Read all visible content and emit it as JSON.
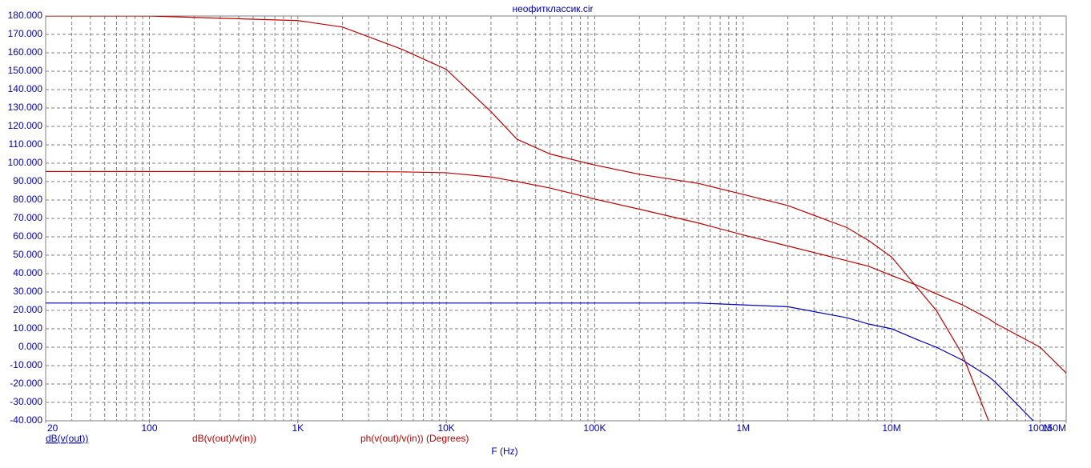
{
  "chart_data": {
    "type": "line",
    "title": "неофитклассик.cir",
    "x_label": "F (Hz)",
    "log_x": true,
    "grid": true,
    "minor_grid": true,
    "x": [
      20,
      100,
      1000,
      2000,
      5000,
      10000,
      20000,
      30000,
      50000,
      100000,
      200000,
      500000,
      1000000,
      2000000,
      5000000,
      7000000,
      10000000,
      15000000,
      20000000,
      30000000,
      45000000,
      50000000,
      90000000,
      100000000,
      150000000
    ],
    "series": [
      {
        "name": "dB(v(out))",
        "color": "#0000c0",
        "values": [
          24,
          24,
          24,
          24,
          24,
          24,
          24,
          24,
          24,
          24,
          24,
          24,
          23,
          22,
          16,
          12.6,
          10,
          4,
          0,
          -7,
          -16,
          -19,
          -40,
          null,
          null
        ]
      },
      {
        "name": "dB(v(out)/v(in))",
        "color": "#c00000",
        "values": [
          95.5,
          95.5,
          95.5,
          95.5,
          95.3,
          94.8,
          92.5,
          90,
          86.5,
          80.5,
          75,
          67.5,
          61,
          55,
          47,
          44,
          39,
          33.5,
          29,
          23,
          15.5,
          13,
          2,
          0,
          -14
        ]
      },
      {
        "name": "ph(v(out)/v(in)) (Degrees)",
        "color": "#c00000",
        "values": [
          180,
          180,
          177.5,
          174,
          162,
          151,
          128,
          113,
          105,
          99,
          94,
          89,
          83,
          77,
          65,
          58,
          49,
          32,
          20,
          -4,
          -40,
          null,
          null,
          null,
          null
        ]
      }
    ],
    "xlim": [
      20,
      150000000
    ],
    "xticks": [
      20,
      100,
      {
        "value": 1000,
        "label": "1K"
      },
      {
        "value": 10000,
        "label": "10K"
      },
      {
        "value": 100000,
        "label": "100K"
      },
      {
        "value": 1000000,
        "label": "1M"
      },
      {
        "value": 10000000,
        "label": "10M"
      },
      {
        "value": 100000000,
        "label": "100M"
      },
      {
        "value": 150000000,
        "label": "150M"
      }
    ],
    "ylim": [
      -40,
      180
    ],
    "yticks": [
      {
        "value": -40,
        "label": "-40.000"
      },
      {
        "value": -30,
        "label": "-30.000"
      },
      {
        "value": -20,
        "label": "-20.000"
      },
      {
        "value": -10,
        "label": "-10.000"
      },
      {
        "value": 0,
        "label": "0.000"
      },
      {
        "value": 10,
        "label": "10.000"
      },
      {
        "value": 20,
        "label": "20.000"
      },
      {
        "value": 30,
        "label": "30.000"
      },
      {
        "value": 40,
        "label": "40.000"
      },
      {
        "value": 50,
        "label": "50.000"
      },
      {
        "value": 60,
        "label": "60.000"
      },
      {
        "value": 70,
        "label": "70.000"
      },
      {
        "value": 80,
        "label": "80.000"
      },
      {
        "value": 90,
        "label": "90.000"
      },
      {
        "value": 100,
        "label": "100.000"
      },
      {
        "value": 110,
        "label": "110.000"
      },
      {
        "value": 120,
        "label": "120.000"
      },
      {
        "value": 130,
        "label": "130.000"
      },
      {
        "value": 140,
        "label": "140.000"
      },
      {
        "value": 150,
        "label": "150.000"
      },
      {
        "value": 160,
        "label": "160.000"
      },
      {
        "value": 170,
        "label": "170.000"
      },
      {
        "value": 180,
        "label": "180.000"
      }
    ]
  }
}
